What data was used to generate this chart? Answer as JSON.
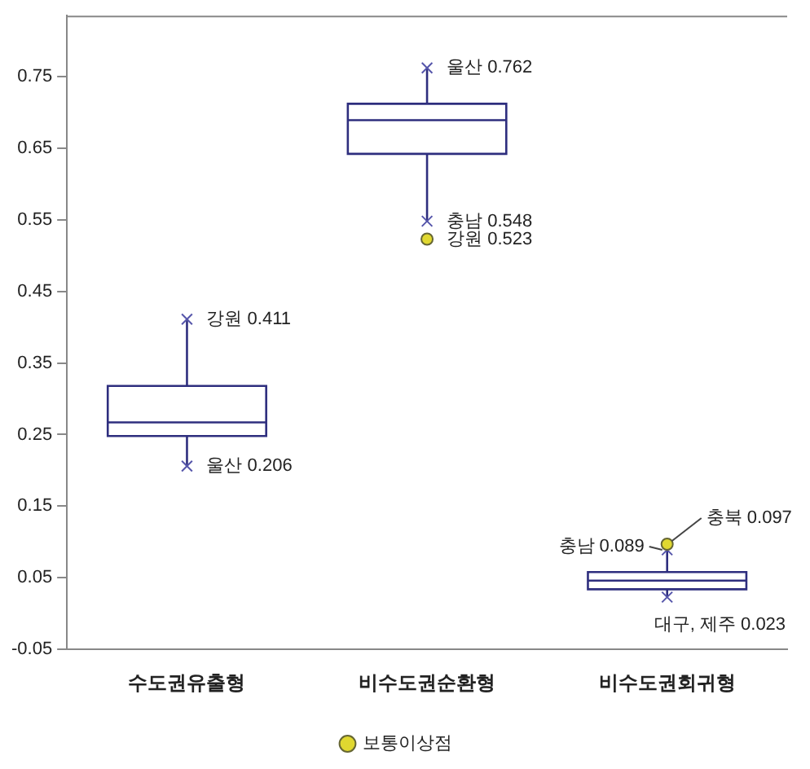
{
  "chart_data": {
    "type": "box",
    "categories": [
      "수도권유출형",
      "비수도권순환형",
      "비수도권회귀형"
    ],
    "series": [
      {
        "color": "#2e2e7e",
        "boxes": [
          {
            "low": 0.206,
            "q1": 0.248,
            "median": 0.267,
            "q3": 0.318,
            "high": 0.411
          },
          {
            "low": 0.548,
            "q1": 0.642,
            "median": 0.689,
            "q3": 0.712,
            "high": 0.762
          },
          {
            "low": 0.023,
            "q1": 0.034,
            "median": 0.046,
            "q3": 0.058,
            "high": 0.089
          }
        ]
      },
      {
        "type": "scatter",
        "name": "보통이상점",
        "color": "#e0d830",
        "x": [
          "비수도권순환형",
          "비수도권회귀형"
        ],
        "values": [
          0.523,
          0.097
        ]
      }
    ],
    "ylim": [
      -0.05,
      0.835
    ],
    "yticks": [
      -0.05,
      0.05,
      0.15,
      0.25,
      0.35,
      0.45,
      0.55,
      0.65,
      0.75
    ],
    "grid": false,
    "legend": "bottom",
    "annotations": [
      {
        "text": "강원 0.411",
        "x": "수도권유출형",
        "y": 0.411
      },
      {
        "text": "울산 0.206",
        "x": "수도권유출형",
        "y": 0.206
      },
      {
        "text": "울산 0.762",
        "x": "비수도권순환형",
        "y": 0.762
      },
      {
        "text": "충남 0.548",
        "x": "비수도권순환형",
        "y": 0.548
      },
      {
        "text": "강원 0.523",
        "x": "비수도권순환형",
        "y": 0.523
      },
      {
        "text": "충남 0.089",
        "x": "비수도권회귀형",
        "y": 0.089
      },
      {
        "text": "충북 0.097",
        "x": "비수도권회귀형",
        "y": 0.097
      },
      {
        "text": "대구, 제주 0.023",
        "x": "비수도권회귀형",
        "y": 0.023
      }
    ]
  }
}
